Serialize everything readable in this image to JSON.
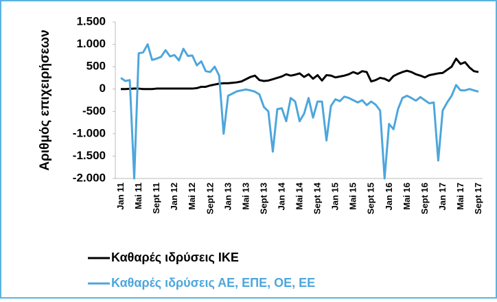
{
  "chart_data": {
    "type": "line",
    "y_label": "Αριθμός επιχειρήσεων",
    "categories": [
      "Jan 11",
      null,
      null,
      null,
      "Mai 11",
      null,
      null,
      null,
      "Sept 11",
      null,
      null,
      null,
      "Jan 12",
      null,
      null,
      null,
      "Mai 12",
      null,
      null,
      null,
      "Sept 12",
      null,
      null,
      null,
      "Jan 13",
      null,
      null,
      null,
      "Mai 13",
      null,
      null,
      null,
      "Sept 13",
      null,
      null,
      null,
      "Jan 14",
      null,
      null,
      null,
      "Mai 14",
      null,
      null,
      null,
      "Sept 14",
      null,
      null,
      null,
      "Jan 15",
      null,
      null,
      null,
      "Mai 15",
      null,
      null,
      null,
      "Sept 15",
      null,
      null,
      null,
      "Jan 16",
      null,
      null,
      null,
      "Mai 16",
      null,
      null,
      null,
      "Sept 16",
      null,
      null,
      null,
      "Jan 17",
      null,
      null,
      null,
      "Mai 17",
      null,
      null,
      null,
      "Sept 17"
    ],
    "series": [
      {
        "name": "Καθαρές ιδρύσεις ΙΚΕ",
        "color": "#000000",
        "values": [
          0,
          0,
          5,
          10,
          10,
          0,
          0,
          0,
          10,
          10,
          10,
          10,
          10,
          10,
          10,
          10,
          10,
          20,
          50,
          50,
          80,
          100,
          120,
          130,
          130,
          140,
          150,
          170,
          220,
          270,
          300,
          200,
          180,
          190,
          220,
          250,
          280,
          330,
          300,
          320,
          350,
          270,
          330,
          230,
          310,
          190,
          310,
          300,
          260,
          280,
          300,
          330,
          380,
          340,
          400,
          380,
          170,
          200,
          250,
          230,
          180,
          290,
          340,
          380,
          410,
          380,
          330,
          300,
          260,
          310,
          330,
          350,
          360,
          430,
          500,
          680,
          560,
          600,
          480,
          400,
          380
        ]
      },
      {
        "name": "Καθαρές ιδρύσεις ΑΕ, ΕΠΕ,  ΟΕ, ΕΕ",
        "color": "#4da6dc",
        "values": [
          250,
          180,
          200,
          -2000,
          800,
          820,
          1000,
          650,
          680,
          720,
          870,
          730,
          760,
          640,
          900,
          740,
          750,
          530,
          620,
          400,
          380,
          500,
          300,
          -1000,
          -150,
          -100,
          -50,
          -30,
          -10,
          -30,
          -60,
          -120,
          -400,
          -500,
          -1400,
          -450,
          -430,
          -720,
          -200,
          -280,
          -720,
          -550,
          -200,
          -640,
          -280,
          -280,
          -1150,
          -380,
          -230,
          -270,
          -170,
          -200,
          -250,
          -300,
          -250,
          -360,
          -280,
          -350,
          -480,
          -2000,
          -780,
          -900,
          -450,
          -200,
          -150,
          -200,
          -260,
          -180,
          -250,
          -320,
          -300,
          -1600,
          -480,
          -300,
          -150,
          90,
          -30,
          -30,
          0,
          -30,
          -60
        ]
      }
    ],
    "ylim": [
      -2000,
      1500
    ],
    "yticks": [
      {
        "value": 1500,
        "label": "1.500"
      },
      {
        "value": 1000,
        "label": "1.000"
      },
      500,
      0,
      -500,
      {
        "value": -1000,
        "label": "-1.000"
      },
      {
        "value": -1500,
        "label": "-1.500"
      },
      {
        "value": -2000,
        "label": "-2.000"
      }
    ],
    "grid": false
  }
}
